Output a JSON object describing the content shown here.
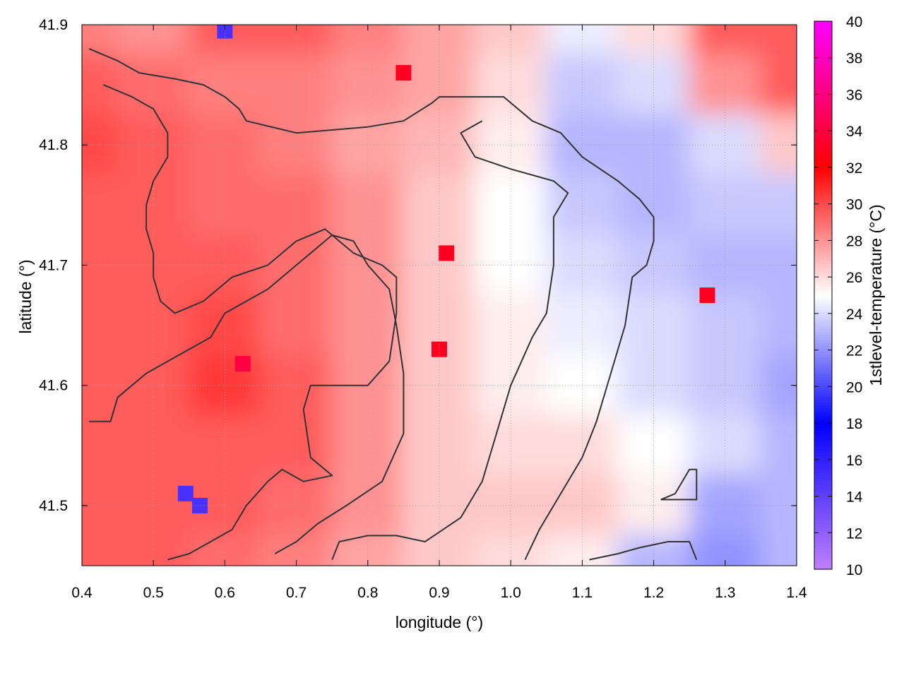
{
  "chart_data": {
    "type": "heatmap",
    "xlabel": "longitude (°)",
    "ylabel": "latitude (°)",
    "colorbar_label": "1stlevel-temperature (°C)",
    "xlim": [
      0.4,
      1.4
    ],
    "ylim": [
      41.45,
      41.9
    ],
    "xticks": [
      0.4,
      0.5,
      0.6,
      0.7,
      0.8,
      0.9,
      1.0,
      1.1,
      1.2,
      1.3,
      1.4
    ],
    "xtick_labels": [
      "0.4",
      "0.5",
      "0.6",
      "0.7",
      "0.8",
      "0.9",
      "1.0",
      "1.1",
      "1.2",
      "1.3",
      "1.4"
    ],
    "yticks": [
      41.5,
      41.6,
      41.7,
      41.8,
      41.9
    ],
    "ytick_labels": [
      "41.5",
      "41.6",
      "41.7",
      "41.8",
      "41.9"
    ],
    "color_range": [
      10,
      40
    ],
    "colorbar_ticks": [
      10,
      12,
      14,
      16,
      18,
      20,
      22,
      24,
      26,
      28,
      30,
      32,
      34,
      36,
      38,
      40
    ],
    "colorbar_tick_labels": [
      "10",
      "12",
      "14",
      "16",
      "18",
      "20",
      "22",
      "24",
      "26",
      "28",
      "30",
      "32",
      "34",
      "36",
      "38",
      "40"
    ],
    "colormap_stops": [
      {
        "value": 10,
        "color": "#c080ff"
      },
      {
        "value": 18,
        "color": "#0000ff"
      },
      {
        "value": 25,
        "color": "#ffffff"
      },
      {
        "value": 32,
        "color": "#ff0000"
      },
      {
        "value": 40,
        "color": "#ff00ff"
      }
    ],
    "grid": true,
    "contour_color": "#333333",
    "field": {
      "lon": [
        0.4,
        0.5,
        0.6,
        0.7,
        0.8,
        0.9,
        1.0,
        1.1,
        1.2,
        1.3,
        1.4
      ],
      "lat": [
        41.9,
        41.85,
        41.8,
        41.75,
        41.7,
        41.65,
        41.6,
        41.55,
        41.5,
        41.45
      ],
      "values": [
        [
          28.5,
          28.0,
          29.5,
          29.5,
          28.5,
          27.5,
          26.5,
          24.5,
          26.0,
          29.5,
          29.5
        ],
        [
          29.5,
          29.0,
          28.5,
          28.5,
          28.0,
          27.5,
          26.0,
          23.5,
          24.0,
          28.0,
          29.5
        ],
        [
          30.0,
          29.5,
          29.0,
          28.5,
          27.5,
          27.0,
          25.5,
          23.0,
          23.0,
          24.0,
          26.5
        ],
        [
          29.5,
          29.5,
          29.0,
          29.0,
          28.0,
          26.5,
          25.0,
          23.5,
          23.0,
          23.5,
          23.5
        ],
        [
          29.5,
          29.5,
          29.5,
          29.0,
          28.0,
          26.5,
          25.0,
          24.0,
          23.5,
          23.0,
          23.0
        ],
        [
          29.5,
          29.5,
          30.0,
          29.0,
          28.0,
          26.5,
          25.5,
          24.5,
          24.0,
          23.5,
          23.0
        ],
        [
          29.5,
          29.5,
          30.5,
          29.5,
          28.0,
          26.5,
          25.5,
          25.0,
          24.0,
          23.5,
          22.5
        ],
        [
          29.5,
          29.5,
          29.5,
          29.5,
          28.0,
          26.5,
          26.0,
          26.0,
          25.0,
          24.0,
          23.0
        ],
        [
          29.5,
          29.5,
          29.5,
          29.0,
          28.0,
          26.5,
          26.5,
          26.5,
          25.5,
          22.5,
          23.0
        ],
        [
          29.5,
          29.5,
          29.0,
          28.5,
          27.5,
          26.5,
          26.0,
          25.5,
          23.0,
          22.0,
          23.0
        ]
      ]
    },
    "hotspots": [
      {
        "lon": 0.625,
        "lat": 41.618,
        "value": 34
      },
      {
        "lon": 0.9,
        "lat": 41.63,
        "value": 33
      },
      {
        "lon": 0.91,
        "lat": 41.71,
        "value": 33
      },
      {
        "lon": 0.85,
        "lat": 41.86,
        "value": 33
      },
      {
        "lon": 1.275,
        "lat": 41.675,
        "value": 33
      },
      {
        "lon": 0.6,
        "lat": 41.895,
        "value": 15
      },
      {
        "lon": 0.545,
        "lat": 41.51,
        "value": 15
      },
      {
        "lon": 0.565,
        "lat": 41.5,
        "value": 15
      }
    ],
    "contours": [
      [
        [
          0.41,
          41.88
        ],
        [
          0.45,
          41.87
        ],
        [
          0.48,
          41.86
        ],
        [
          0.53,
          41.855
        ],
        [
          0.57,
          41.85
        ],
        [
          0.6,
          41.84
        ],
        [
          0.62,
          41.83
        ],
        [
          0.63,
          41.82
        ],
        [
          0.7,
          41.81
        ],
        [
          0.8,
          41.815
        ],
        [
          0.85,
          41.82
        ],
        [
          0.89,
          41.835
        ],
        [
          0.9,
          41.84
        ],
        [
          0.99,
          41.84
        ],
        [
          1.03,
          41.82
        ],
        [
          1.07,
          41.81
        ],
        [
          1.1,
          41.79
        ],
        [
          1.15,
          41.77
        ],
        [
          1.18,
          41.755
        ],
        [
          1.2,
          41.74
        ],
        [
          1.2,
          41.72
        ],
        [
          1.19,
          41.7
        ],
        [
          1.17,
          41.69
        ],
        [
          1.16,
          41.65
        ],
        [
          1.14,
          41.61
        ],
        [
          1.12,
          41.57
        ],
        [
          1.1,
          41.54
        ],
        [
          1.07,
          41.51
        ],
        [
          1.04,
          41.48
        ],
        [
          1.02,
          41.455
        ]
      ],
      [
        [
          0.43,
          41.85
        ],
        [
          0.47,
          41.84
        ],
        [
          0.5,
          41.83
        ],
        [
          0.52,
          41.81
        ],
        [
          0.52,
          41.79
        ],
        [
          0.5,
          41.77
        ],
        [
          0.49,
          41.75
        ],
        [
          0.49,
          41.73
        ],
        [
          0.5,
          41.71
        ],
        [
          0.5,
          41.69
        ],
        [
          0.51,
          41.67
        ],
        [
          0.53,
          41.66
        ],
        [
          0.57,
          41.67
        ],
        [
          0.61,
          41.69
        ],
        [
          0.66,
          41.7
        ],
        [
          0.7,
          41.72
        ],
        [
          0.74,
          41.73
        ],
        [
          0.78,
          41.71
        ],
        [
          0.82,
          41.7
        ],
        [
          0.84,
          41.69
        ],
        [
          0.84,
          41.66
        ],
        [
          0.83,
          41.62
        ],
        [
          0.8,
          41.6
        ],
        [
          0.77,
          41.6
        ],
        [
          0.72,
          41.6
        ],
        [
          0.71,
          41.58
        ],
        [
          0.72,
          41.54
        ],
        [
          0.75,
          41.525
        ],
        [
          0.71,
          41.52
        ],
        [
          0.68,
          41.53
        ],
        [
          0.66,
          41.52
        ],
        [
          0.63,
          41.5
        ],
        [
          0.61,
          41.48
        ],
        [
          0.58,
          41.47
        ],
        [
          0.55,
          41.46
        ],
        [
          0.52,
          41.455
        ]
      ],
      [
        [
          0.41,
          41.57
        ],
        [
          0.44,
          41.57
        ],
        [
          0.45,
          41.59
        ],
        [
          0.47,
          41.6
        ],
        [
          0.49,
          41.61
        ],
        [
          0.52,
          41.62
        ],
        [
          0.55,
          41.63
        ],
        [
          0.58,
          41.64
        ],
        [
          0.6,
          41.66
        ],
        [
          0.63,
          41.67
        ],
        [
          0.66,
          41.68
        ],
        [
          0.7,
          41.7
        ],
        [
          0.75,
          41.725
        ],
        [
          0.78,
          41.72
        ],
        [
          0.8,
          41.7
        ],
        [
          0.83,
          41.68
        ],
        [
          0.84,
          41.65
        ],
        [
          0.85,
          41.61
        ],
        [
          0.85,
          41.56
        ],
        [
          0.82,
          41.52
        ],
        [
          0.77,
          41.5
        ],
        [
          0.73,
          41.485
        ],
        [
          0.7,
          41.47
        ],
        [
          0.67,
          41.46
        ]
      ],
      [
        [
          0.75,
          41.455
        ],
        [
          0.76,
          41.47
        ],
        [
          0.8,
          41.475
        ],
        [
          0.84,
          41.475
        ],
        [
          0.88,
          41.47
        ],
        [
          0.93,
          41.49
        ],
        [
          0.96,
          41.52
        ],
        [
          0.98,
          41.56
        ],
        [
          1.0,
          41.6
        ],
        [
          1.03,
          41.64
        ],
        [
          1.05,
          41.66
        ],
        [
          1.06,
          41.7
        ],
        [
          1.06,
          41.74
        ],
        [
          1.08,
          41.76
        ],
        [
          1.06,
          41.77
        ],
        [
          1.0,
          41.78
        ],
        [
          0.95,
          41.79
        ],
        [
          0.93,
          41.81
        ],
        [
          0.96,
          41.82
        ]
      ],
      [
        [
          1.11,
          41.455
        ],
        [
          1.15,
          41.46
        ],
        [
          1.18,
          41.465
        ],
        [
          1.22,
          41.47
        ],
        [
          1.25,
          41.47
        ],
        [
          1.26,
          41.455
        ]
      ],
      [
        [
          1.21,
          41.505
        ],
        [
          1.23,
          41.51
        ],
        [
          1.25,
          41.53
        ],
        [
          1.26,
          41.53
        ],
        [
          1.26,
          41.505
        ],
        [
          1.21,
          41.505
        ]
      ]
    ]
  }
}
